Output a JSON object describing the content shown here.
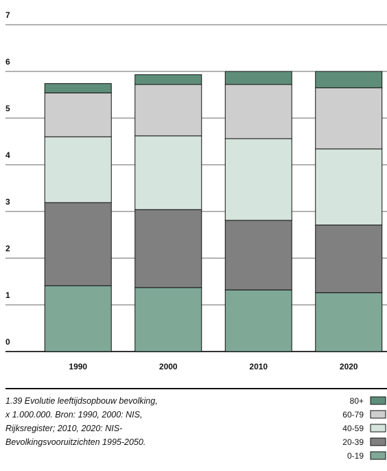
{
  "chart_data": {
    "type": "stacked_bar",
    "categories": [
      "1990",
      "2000",
      "2010",
      "2020"
    ],
    "series": [
      {
        "name": "0-19",
        "color": "#7fa897",
        "values": [
          1.41,
          1.37,
          1.32,
          1.26
        ]
      },
      {
        "name": "20-39",
        "color": "#808080",
        "values": [
          1.78,
          1.67,
          1.49,
          1.45
        ]
      },
      {
        "name": "40-59",
        "color": "#d5e4dd",
        "values": [
          1.41,
          1.58,
          1.75,
          1.63
        ]
      },
      {
        "name": "60-79",
        "color": "#cecece",
        "values": [
          0.94,
          1.1,
          1.16,
          1.31
        ]
      },
      {
        "name": "80+",
        "color": "#5e8e79",
        "values": [
          0.2,
          0.21,
          0.28,
          0.35
        ]
      }
    ],
    "ylim": [
      0,
      7
    ],
    "yticks": [
      0,
      1,
      2,
      3,
      4,
      5,
      6,
      7
    ],
    "grid": true,
    "caption": [
      "1.39  Evolutie leeftijdsopbouw bevolking,",
      "x 1.000.000. Bron: 1990, 2000: NIS,",
      "Rijksregister; 2010, 2020: NIS-",
      "Bevolkingsvooruitzichten 1995-2050."
    ],
    "legend": "bottom-right"
  }
}
